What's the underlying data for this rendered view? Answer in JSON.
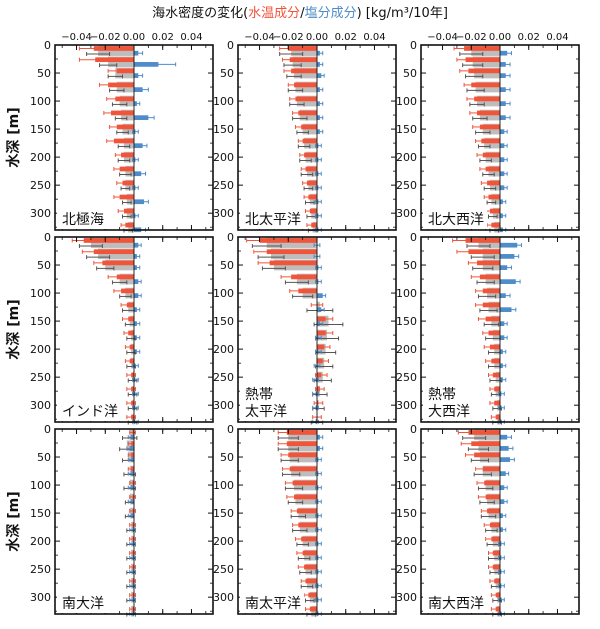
{
  "title": {
    "prefix": "海水密度の変化(",
    "temp_label": "水温成分",
    "slash": "/",
    "salt_label": "塩分成分",
    "suffix": ") [kg/m³/10年]"
  },
  "y_axis_label": "水深 [m]",
  "colors": {
    "total": "#bdbdbd",
    "temp": "#f0553a",
    "salt": "#4f8cc9",
    "title_temp": "#f0553a",
    "title_salt": "#4f8cc9",
    "total_error": "#555555"
  },
  "chart_data": [
    {
      "panel": "北極海",
      "label_lines": [
        "北極海"
      ],
      "type": "bar",
      "xlim": [
        -0.055,
        0.055
      ],
      "ylim": [
        0,
        330
      ],
      "x_ticks": [
        -0.04,
        -0.02,
        0,
        0.02,
        0.04
      ],
      "x_tick_labels": [
        "−0.04",
        "−0.02",
        "0.00",
        "0.02",
        "0.04"
      ],
      "y_ticks": [
        0,
        50,
        100,
        150,
        200,
        250,
        300
      ],
      "depths": [
        10,
        30,
        50,
        75,
        100,
        125,
        150,
        175,
        200,
        225,
        250,
        275,
        300,
        325
      ],
      "total": [
        -0.025,
        -0.018,
        -0.013,
        -0.012,
        -0.01,
        -0.009,
        -0.008,
        -0.007,
        -0.007,
        -0.006,
        -0.006,
        -0.005,
        -0.005,
        -0.004
      ],
      "temp": [
        -0.028,
        -0.027,
        -0.012,
        -0.018,
        -0.013,
        -0.016,
        -0.012,
        -0.014,
        -0.009,
        -0.01,
        -0.008,
        -0.01,
        -0.007,
        -0.006
      ],
      "salt": [
        0.003,
        0.017,
        0.003,
        0.006,
        0.002,
        0.01,
        0.001,
        0.006,
        0.001,
        0.005,
        0.001,
        0.007,
        0.001,
        0.005
      ],
      "total_err": [
        0.008,
        0.006,
        0.005,
        0.005,
        0.005,
        0.004,
        0.004,
        0.004,
        0.004,
        0.004,
        0.003,
        0.003,
        0.003,
        0.003
      ],
      "temp_err": [
        0.01,
        0.011,
        0.006,
        0.006,
        0.006,
        0.005,
        0.005,
        0.005,
        0.004,
        0.004,
        0.004,
        0.004,
        0.004,
        0.003
      ],
      "salt_err": [
        0.003,
        0.012,
        0.003,
        0.004,
        0.002,
        0.004,
        0.002,
        0.003,
        0.002,
        0.003,
        0.002,
        0.003,
        0.002,
        0.003
      ]
    },
    {
      "panel": "北太平洋",
      "label_lines": [
        "北太平洋"
      ],
      "type": "bar",
      "xlim": [
        -0.055,
        0.055
      ],
      "ylim": [
        0,
        330
      ],
      "x_ticks": [
        -0.04,
        -0.02,
        0,
        0.02,
        0.04
      ],
      "x_tick_labels": [
        "−0.04",
        "−0.02",
        "0.00",
        "0.02",
        "0.04"
      ],
      "y_ticks": [
        0,
        50,
        100,
        150,
        200,
        250,
        300
      ],
      "depths": [
        10,
        30,
        50,
        75,
        100,
        125,
        150,
        175,
        200,
        225,
        250,
        275,
        300,
        325
      ],
      "total": [
        -0.018,
        -0.017,
        -0.016,
        -0.015,
        -0.014,
        -0.012,
        -0.01,
        -0.009,
        -0.008,
        -0.007,
        -0.006,
        -0.005,
        -0.004,
        -0.003
      ],
      "temp": [
        -0.02,
        -0.019,
        -0.018,
        -0.016,
        -0.015,
        -0.013,
        -0.011,
        -0.01,
        -0.009,
        -0.008,
        -0.007,
        -0.006,
        -0.005,
        -0.004
      ],
      "salt": [
        0.002,
        0.002,
        0.003,
        0.002,
        0.002,
        0.002,
        0.002,
        0.001,
        0.001,
        0.001,
        0.001,
        0.001,
        0.001,
        0.001
      ],
      "total_err": [
        0.008,
        0.006,
        0.005,
        0.005,
        0.005,
        0.005,
        0.004,
        0.004,
        0.004,
        0.004,
        0.003,
        0.003,
        0.003,
        0.003
      ],
      "temp_err": [
        0.006,
        0.005,
        0.005,
        0.004,
        0.004,
        0.004,
        0.004,
        0.003,
        0.003,
        0.003,
        0.003,
        0.003,
        0.003,
        0.003
      ],
      "salt_err": [
        0.002,
        0.002,
        0.002,
        0.002,
        0.002,
        0.002,
        0.002,
        0.002,
        0.002,
        0.002,
        0.002,
        0.002,
        0.002,
        0.002
      ]
    },
    {
      "panel": "北大西洋",
      "label_lines": [
        "北大西洋"
      ],
      "type": "bar",
      "xlim": [
        -0.055,
        0.055
      ],
      "ylim": [
        0,
        330
      ],
      "x_ticks": [
        -0.04,
        -0.02,
        0,
        0.02,
        0.04
      ],
      "x_tick_labels": [
        "−0.04",
        "−0.02",
        "0.00",
        "0.02",
        "0.04"
      ],
      "y_ticks": [
        0,
        50,
        100,
        150,
        200,
        250,
        300
      ],
      "depths": [
        10,
        30,
        50,
        75,
        100,
        125,
        150,
        175,
        200,
        225,
        250,
        275,
        300,
        325
      ],
      "total": [
        -0.02,
        -0.019,
        -0.018,
        -0.017,
        -0.016,
        -0.014,
        -0.012,
        -0.011,
        -0.01,
        -0.008,
        -0.007,
        -0.006,
        -0.005,
        -0.004
      ],
      "temp": [
        -0.025,
        -0.024,
        -0.022,
        -0.02,
        -0.018,
        -0.016,
        -0.014,
        -0.013,
        -0.012,
        -0.01,
        -0.009,
        -0.008,
        -0.007,
        -0.006
      ],
      "salt": [
        0.005,
        0.004,
        0.004,
        0.004,
        0.004,
        0.004,
        0.003,
        0.003,
        0.003,
        0.003,
        0.003,
        0.002,
        0.002,
        0.002
      ],
      "total_err": [
        0.008,
        0.007,
        0.006,
        0.006,
        0.005,
        0.005,
        0.005,
        0.004,
        0.004,
        0.004,
        0.004,
        0.003,
        0.003,
        0.003
      ],
      "temp_err": [
        0.007,
        0.006,
        0.006,
        0.005,
        0.005,
        0.005,
        0.005,
        0.004,
        0.004,
        0.004,
        0.004,
        0.003,
        0.003,
        0.003
      ],
      "salt_err": [
        0.003,
        0.003,
        0.003,
        0.003,
        0.003,
        0.003,
        0.002,
        0.002,
        0.002,
        0.002,
        0.002,
        0.002,
        0.002,
        0.002
      ]
    },
    {
      "panel": "インド洋",
      "label_lines": [
        "インド洋"
      ],
      "type": "bar",
      "xlim": [
        -0.055,
        0.055
      ],
      "ylim": [
        0,
        330
      ],
      "x_ticks": [
        -0.04,
        -0.02,
        0,
        0.02,
        0.04
      ],
      "x_tick_labels": [
        "−0.04",
        "−0.02",
        "0.00",
        "0.02",
        "0.04"
      ],
      "y_ticks": [
        0,
        50,
        100,
        150,
        200,
        250,
        300
      ],
      "depths": [
        10,
        30,
        50,
        75,
        100,
        125,
        150,
        175,
        200,
        225,
        250,
        275,
        300,
        325
      ],
      "total": [
        -0.03,
        -0.025,
        -0.02,
        -0.01,
        -0.006,
        -0.004,
        -0.003,
        -0.002,
        -0.002,
        -0.002,
        -0.001,
        -0.001,
        -0.001,
        -0.001
      ],
      "temp": [
        -0.035,
        -0.028,
        -0.022,
        -0.012,
        -0.009,
        -0.005,
        -0.004,
        -0.004,
        -0.003,
        -0.003,
        -0.002,
        -0.002,
        -0.002,
        -0.002
      ],
      "salt": [
        0.003,
        0.002,
        0.002,
        0.003,
        0.003,
        0.002,
        0.002,
        0.002,
        0.002,
        0.001,
        0.001,
        0.001,
        0.001,
        0.001
      ],
      "total_err": [
        0.008,
        0.008,
        0.006,
        0.005,
        0.004,
        0.004,
        0.003,
        0.003,
        0.003,
        0.003,
        0.003,
        0.003,
        0.003,
        0.003
      ],
      "temp_err": [
        0.008,
        0.008,
        0.006,
        0.006,
        0.005,
        0.004,
        0.004,
        0.003,
        0.003,
        0.003,
        0.003,
        0.003,
        0.003,
        0.003
      ],
      "salt_err": [
        0.002,
        0.002,
        0.002,
        0.002,
        0.002,
        0.002,
        0.002,
        0.002,
        0.002,
        0.002,
        0.002,
        0.002,
        0.002,
        0.002
      ]
    },
    {
      "panel": "熱帯太平洋",
      "label_lines": [
        "熱帯",
        "太平洋"
      ],
      "type": "bar",
      "xlim": [
        -0.055,
        0.055
      ],
      "ylim": [
        0,
        330
      ],
      "x_ticks": [
        -0.04,
        -0.02,
        0,
        0.02,
        0.04
      ],
      "x_tick_labels": [
        "−0.04",
        "−0.02",
        "0.00",
        "0.02",
        "0.04"
      ],
      "y_ticks": [
        0,
        50,
        100,
        150,
        200,
        250,
        300
      ],
      "depths": [
        10,
        30,
        50,
        75,
        100,
        125,
        150,
        175,
        200,
        225,
        250,
        275,
        300,
        325
      ],
      "total": [
        -0.035,
        -0.032,
        -0.03,
        -0.014,
        -0.01,
        0.002,
        0.008,
        0.007,
        0.006,
        0.005,
        0.004,
        0.002,
        0.001,
        0.0
      ],
      "temp": [
        -0.04,
        -0.035,
        -0.033,
        -0.018,
        -0.013,
        0.0,
        0.006,
        0.006,
        0.005,
        0.004,
        0.003,
        0.002,
        0.001,
        0.0
      ],
      "salt": [
        0.0,
        0.0,
        0.001,
        0.001,
        0.004,
        0.003,
        0.002,
        0.001,
        0.001,
        0.0,
        -0.001,
        -0.001,
        -0.001,
        -0.001
      ],
      "total_err": [
        0.01,
        0.009,
        0.008,
        0.008,
        0.007,
        0.009,
        0.01,
        0.008,
        0.007,
        0.006,
        0.006,
        0.005,
        0.004,
        0.004
      ],
      "temp_err": [
        0.009,
        0.009,
        0.008,
        0.007,
        0.006,
        0.004,
        0.005,
        0.005,
        0.004,
        0.004,
        0.004,
        0.003,
        0.003,
        0.003
      ],
      "salt_err": [
        0.002,
        0.002,
        0.002,
        0.002,
        0.002,
        0.002,
        0.002,
        0.002,
        0.002,
        0.002,
        0.002,
        0.002,
        0.002,
        0.002
      ]
    },
    {
      "panel": "熱帯大西洋",
      "label_lines": [
        "熱帯",
        "大西洋"
      ],
      "type": "bar",
      "xlim": [
        -0.055,
        0.055
      ],
      "ylim": [
        0,
        330
      ],
      "x_ticks": [
        -0.04,
        -0.02,
        0,
        0.02,
        0.04
      ],
      "x_tick_labels": [
        "−0.04",
        "−0.02",
        "0.00",
        "0.02",
        "0.04"
      ],
      "y_ticks": [
        0,
        50,
        100,
        150,
        200,
        250,
        300
      ],
      "depths": [
        10,
        30,
        50,
        75,
        100,
        125,
        150,
        175,
        200,
        225,
        250,
        275,
        300,
        325
      ],
      "total": [
        -0.015,
        -0.012,
        -0.012,
        -0.01,
        -0.009,
        -0.008,
        -0.006,
        -0.005,
        -0.004,
        -0.004,
        -0.003,
        -0.003,
        -0.002,
        -0.002
      ],
      "temp": [
        -0.024,
        -0.022,
        -0.016,
        -0.014,
        -0.012,
        -0.012,
        -0.01,
        -0.008,
        -0.007,
        -0.006,
        -0.005,
        -0.004,
        -0.004,
        -0.003
      ],
      "salt": [
        0.012,
        0.01,
        0.005,
        0.011,
        0.004,
        0.008,
        0.003,
        0.003,
        0.002,
        0.002,
        0.002,
        0.001,
        0.001,
        0.001
      ],
      "total_err": [
        0.008,
        0.008,
        0.007,
        0.006,
        0.006,
        0.006,
        0.005,
        0.005,
        0.004,
        0.004,
        0.004,
        0.003,
        0.003,
        0.003
      ],
      "temp_err": [
        0.009,
        0.008,
        0.006,
        0.006,
        0.005,
        0.005,
        0.005,
        0.004,
        0.004,
        0.004,
        0.003,
        0.003,
        0.003,
        0.003
      ],
      "salt_err": [
        0.003,
        0.003,
        0.003,
        0.003,
        0.003,
        0.003,
        0.002,
        0.002,
        0.002,
        0.002,
        0.002,
        0.002,
        0.002,
        0.002
      ]
    },
    {
      "panel": "南大洋",
      "label_lines": [
        "南大洋"
      ],
      "type": "bar",
      "xlim": [
        -0.055,
        0.055
      ],
      "ylim": [
        0,
        330
      ],
      "x_ticks": [
        -0.04,
        -0.02,
        0,
        0.02,
        0.04
      ],
      "x_tick_labels": [
        "−0.04",
        "−0.02",
        "0.00",
        "0.02",
        "0.04"
      ],
      "y_ticks": [
        0,
        50,
        100,
        150,
        200,
        250,
        300
      ],
      "depths": [
        10,
        30,
        50,
        75,
        100,
        125,
        150,
        175,
        200,
        225,
        250,
        275,
        300,
        325
      ],
      "total": [
        -0.003,
        -0.005,
        -0.004,
        -0.003,
        -0.003,
        -0.003,
        -0.003,
        -0.002,
        -0.002,
        -0.002,
        -0.002,
        -0.002,
        -0.002,
        -0.002
      ],
      "temp": [
        -0.001,
        -0.002,
        -0.002,
        -0.002,
        -0.001,
        -0.001,
        -0.001,
        -0.001,
        -0.001,
        -0.001,
        -0.001,
        -0.001,
        -0.001,
        -0.001
      ],
      "salt": [
        -0.002,
        -0.003,
        -0.002,
        -0.002,
        -0.002,
        -0.002,
        -0.002,
        -0.001,
        -0.001,
        -0.001,
        -0.001,
        -0.001,
        -0.001,
        -0.001
      ],
      "total_err": [
        0.005,
        0.005,
        0.004,
        0.004,
        0.004,
        0.003,
        0.003,
        0.003,
        0.003,
        0.003,
        0.003,
        0.003,
        0.003,
        0.003
      ],
      "temp_err": [
        0.002,
        0.002,
        0.002,
        0.002,
        0.002,
        0.002,
        0.002,
        0.002,
        0.002,
        0.002,
        0.002,
        0.002,
        0.002,
        0.002
      ],
      "salt_err": [
        0.002,
        0.002,
        0.002,
        0.002,
        0.002,
        0.002,
        0.002,
        0.002,
        0.002,
        0.002,
        0.002,
        0.002,
        0.002,
        0.002
      ]
    },
    {
      "panel": "南太平洋",
      "label_lines": [
        "南太平洋"
      ],
      "type": "bar",
      "xlim": [
        -0.055,
        0.055
      ],
      "ylim": [
        0,
        330
      ],
      "x_ticks": [
        -0.04,
        -0.02,
        0,
        0.02,
        0.04
      ],
      "x_tick_labels": [
        "−0.04",
        "−0.02",
        "0.00",
        "0.02",
        "0.04"
      ],
      "y_ticks": [
        0,
        50,
        100,
        150,
        200,
        250,
        300
      ],
      "depths": [
        10,
        30,
        50,
        75,
        100,
        125,
        150,
        175,
        200,
        225,
        250,
        275,
        300,
        325
      ],
      "total": [
        -0.02,
        -0.02,
        -0.019,
        -0.018,
        -0.016,
        -0.015,
        -0.013,
        -0.012,
        -0.01,
        -0.009,
        -0.008,
        -0.007,
        -0.005,
        -0.004
      ],
      "temp": [
        -0.021,
        -0.021,
        -0.02,
        -0.019,
        -0.017,
        -0.016,
        -0.014,
        -0.013,
        -0.011,
        -0.01,
        -0.009,
        -0.008,
        -0.006,
        -0.005
      ],
      "salt": [
        0.002,
        0.002,
        0.001,
        0.001,
        0.001,
        0.001,
        0.001,
        0.001,
        0.001,
        0.001,
        0.001,
        0.001,
        0.001,
        0.001
      ],
      "total_err": [
        0.007,
        0.007,
        0.006,
        0.006,
        0.006,
        0.005,
        0.005,
        0.005,
        0.004,
        0.004,
        0.004,
        0.004,
        0.003,
        0.003
      ],
      "temp_err": [
        0.006,
        0.006,
        0.005,
        0.005,
        0.005,
        0.005,
        0.004,
        0.004,
        0.004,
        0.004,
        0.004,
        0.003,
        0.003,
        0.003
      ],
      "salt_err": [
        0.002,
        0.002,
        0.002,
        0.002,
        0.002,
        0.002,
        0.002,
        0.002,
        0.002,
        0.002,
        0.002,
        0.002,
        0.002,
        0.002
      ]
    },
    {
      "panel": "南大西洋",
      "label_lines": [
        "南大西洋"
      ],
      "type": "bar",
      "xlim": [
        -0.055,
        0.055
      ],
      "ylim": [
        0,
        330
      ],
      "x_ticks": [
        -0.04,
        -0.02,
        0,
        0.02,
        0.04
      ],
      "x_tick_labels": [
        "−0.04",
        "−0.02",
        "0.00",
        "0.02",
        "0.04"
      ],
      "y_ticks": [
        0,
        50,
        100,
        150,
        200,
        250,
        300
      ],
      "depths": [
        10,
        30,
        50,
        75,
        100,
        125,
        150,
        175,
        200,
        225,
        250,
        275,
        300,
        325
      ],
      "total": [
        -0.018,
        -0.015,
        -0.014,
        -0.012,
        -0.01,
        -0.009,
        -0.008,
        -0.006,
        -0.005,
        -0.004,
        -0.004,
        -0.003,
        -0.002,
        -0.002
      ],
      "temp": [
        -0.022,
        -0.02,
        -0.018,
        -0.012,
        -0.011,
        -0.01,
        -0.009,
        -0.007,
        -0.006,
        -0.005,
        -0.005,
        -0.004,
        -0.003,
        -0.003
      ],
      "salt": [
        0.005,
        0.006,
        0.007,
        0.004,
        0.003,
        0.003,
        0.002,
        0.002,
        0.001,
        0.001,
        0.001,
        0.001,
        0.001,
        0.001
      ],
      "total_err": [
        0.008,
        0.007,
        0.006,
        0.006,
        0.005,
        0.005,
        0.005,
        0.004,
        0.004,
        0.004,
        0.003,
        0.003,
        0.003,
        0.003
      ],
      "temp_err": [
        0.007,
        0.007,
        0.006,
        0.005,
        0.005,
        0.005,
        0.004,
        0.004,
        0.004,
        0.003,
        0.003,
        0.003,
        0.003,
        0.003
      ],
      "salt_err": [
        0.003,
        0.003,
        0.003,
        0.002,
        0.002,
        0.002,
        0.002,
        0.002,
        0.002,
        0.002,
        0.002,
        0.002,
        0.002,
        0.002
      ]
    }
  ]
}
